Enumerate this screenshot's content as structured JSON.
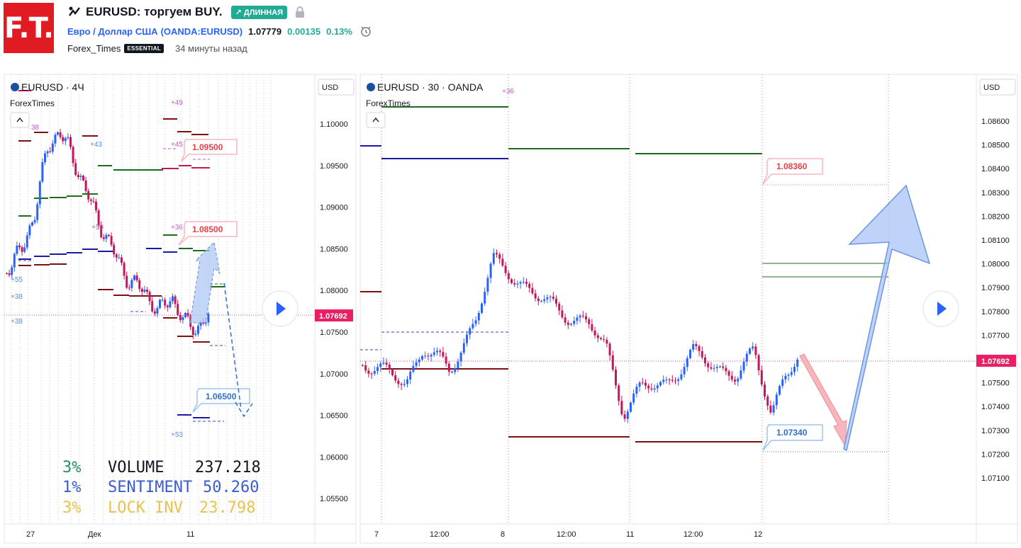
{
  "header": {
    "logo_text": "F.T.",
    "title": "EURUSD: торгуем BUY.",
    "badge": "↗ ДЛИННАЯ",
    "symbol_name": "Евро / Доллар США",
    "symbol_code": "(OANDA:EURUSD)",
    "price": "1.07779",
    "change": "0.00135",
    "change_pct": "0.13%",
    "author": "Forex_Times",
    "author_badge": "ESSENTIAL",
    "time_ago": "34 минуты назад"
  },
  "left_chart": {
    "title": "EURUSD · 4Ч",
    "indicator": "ForexTimes",
    "currency": "USD",
    "price_labels": [
      "1.10000",
      "1.09500",
      "1.09000",
      "1.08500",
      "1.08000",
      "1.07500",
      "1.07000",
      "1.06500",
      "1.06000",
      "1.05500"
    ],
    "price_values": [
      1.1,
      1.095,
      1.09,
      1.085,
      1.08,
      1.075,
      1.07,
      1.065,
      1.06,
      1.055
    ],
    "current_price": "1.07692",
    "time_labels": [
      "27",
      "Дек",
      "11"
    ],
    "targets": [
      "1.09500",
      "1.08500",
      "1.06500"
    ],
    "small_labels": [
      "38",
      "+43",
      "+49",
      "+45",
      "+50",
      "+36",
      "+55",
      "+38",
      "+38",
      "+53"
    ],
    "stats": [
      {
        "pct": "3%",
        "label": "VOLUME",
        "value": "237.218"
      },
      {
        "pct": "1%",
        "label": "SENTIMENT",
        "value": "50.260"
      },
      {
        "pct": "3%",
        "label": "LOCK INV",
        "value": "23.798"
      }
    ],
    "colors": {
      "stat1": "#2a8c6a",
      "stat2": "#3a5ccf",
      "stat3": "#e9c34f"
    }
  },
  "right_chart": {
    "title": "EURUSD · 30 · OANDA",
    "indicator": "ForexTimes",
    "currency": "USD",
    "price_labels": [
      "1.08600",
      "1.08500",
      "1.08400",
      "1.08300",
      "1.08200",
      "1.08100",
      "1.08000",
      "1.07900",
      "1.07800",
      "1.07700",
      "1.07600",
      "1.07500",
      "1.07400",
      "1.07300",
      "1.07200",
      "1.07100"
    ],
    "price_values": [
      1.086,
      1.085,
      1.084,
      1.083,
      1.082,
      1.081,
      1.08,
      1.079,
      1.078,
      1.077,
      1.076,
      1.075,
      1.074,
      1.073,
      1.072,
      1.071
    ],
    "current_price": "1.07692",
    "time_labels": [
      "7",
      "12:00",
      "8",
      "12:00",
      "11",
      "12:00",
      "12"
    ],
    "targets": [
      "1.08360",
      "1.07340"
    ],
    "small_labels": [
      "+36"
    ]
  },
  "colors": {
    "up": "#2962ff",
    "down": "#c2185b",
    "green": "#1e6b1e",
    "darkred": "#7b1113",
    "navy": "#1a1aa6"
  }
}
